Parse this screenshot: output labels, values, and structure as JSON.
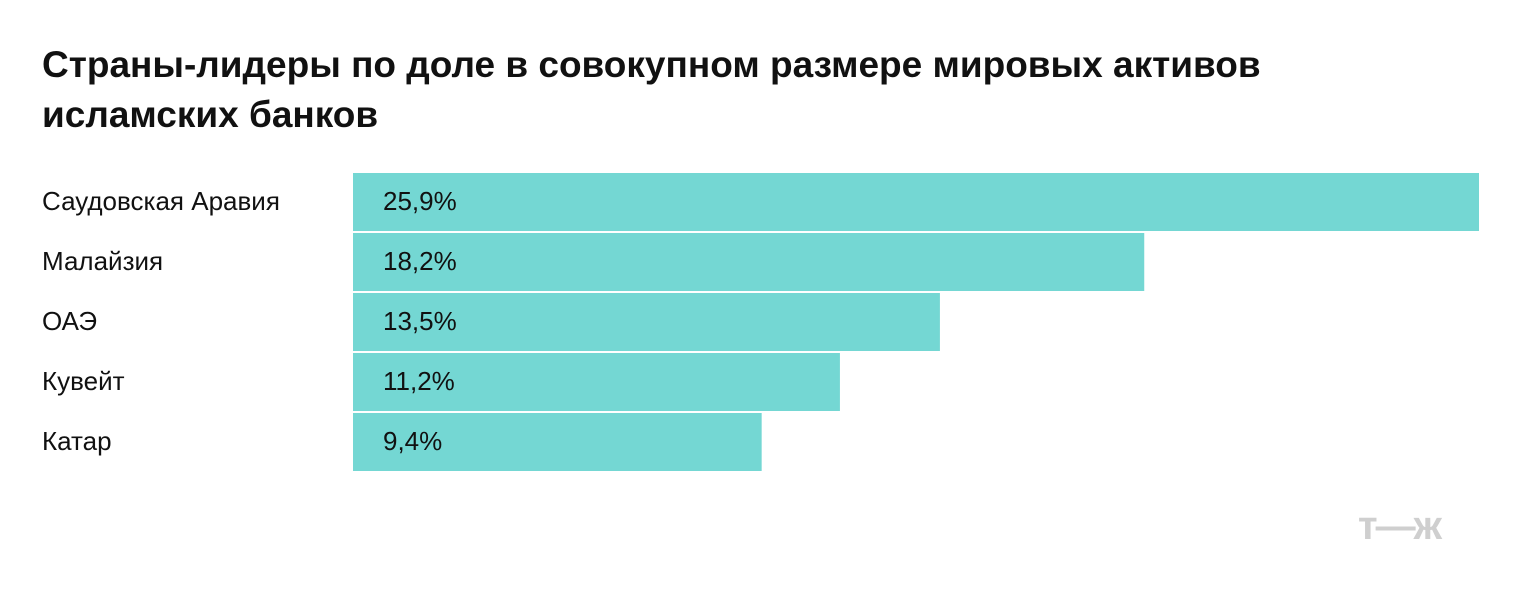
{
  "chart_data": {
    "type": "bar",
    "orientation": "horizontal",
    "title": "Страны-лидеры по доле в совокупном размере мировых активов исламских банков",
    "categories": [
      "Саудовская Аравия",
      "Малайзия",
      "ОАЭ",
      "Кувейт",
      "Катар"
    ],
    "values": [
      25.9,
      18.2,
      13.5,
      11.2,
      9.4
    ],
    "value_labels": [
      "25,9%",
      "18,2%",
      "13,5%",
      "11,2%",
      "9,4%"
    ],
    "color": "#74d7d3"
  },
  "logo": "т—ж"
}
